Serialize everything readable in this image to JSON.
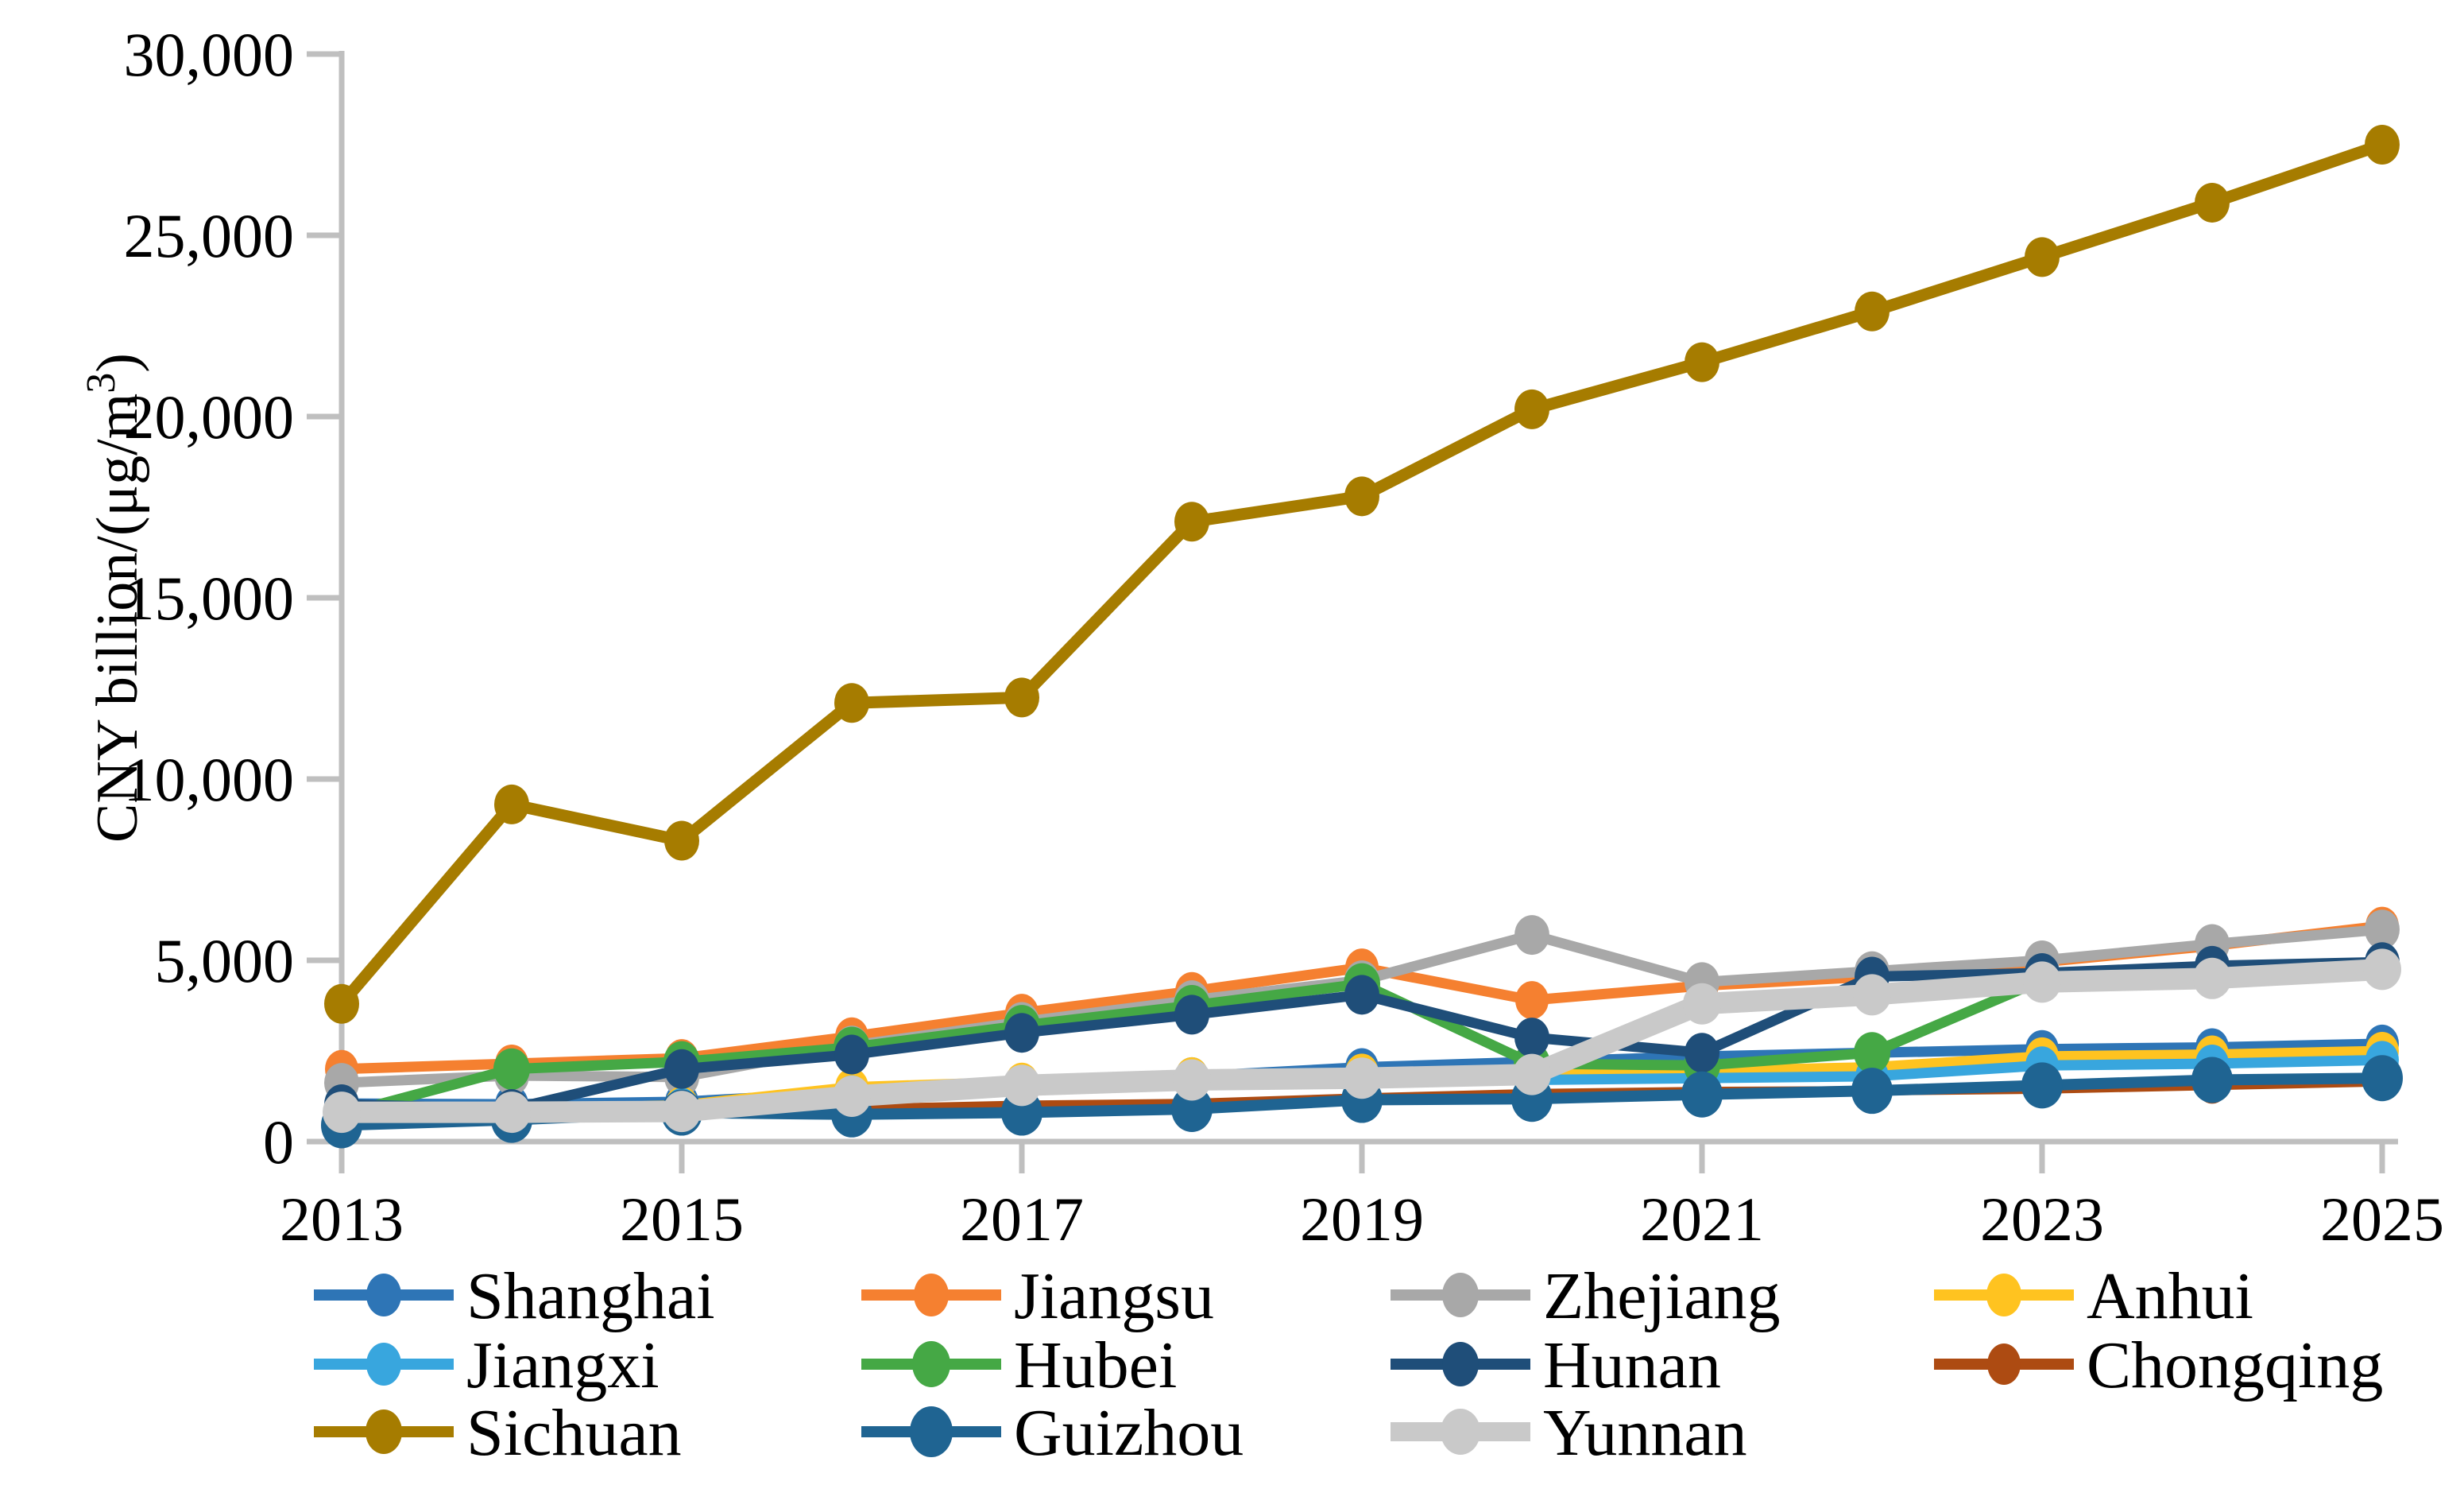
{
  "chart_data": {
    "type": "line",
    "title": "",
    "ylabel_prefix": "CNY billion/(μg/m",
    "ylabel_sup": "3",
    "ylabel_suffix": ")",
    "x": [
      2013,
      2014,
      2015,
      2016,
      2017,
      2018,
      2019,
      2020,
      2021,
      2022,
      2023,
      2024,
      2025
    ],
    "x_tick_labels": [
      "2013",
      "2015",
      "2017",
      "2019",
      "2021",
      "2023",
      "2025"
    ],
    "y_axis": {
      "min": 0,
      "max": 30000,
      "step": 5000,
      "tick_labels": [
        "0",
        "5,000",
        "10,000",
        "15,000",
        "20,000",
        "25,000",
        "30,000"
      ]
    },
    "grid": false,
    "legend_position": "bottom",
    "series": [
      {
        "name": "Shanghai",
        "color": "#2E75B6",
        "line_width": 13,
        "marker_rx": 21,
        "marker_ry": 24,
        "values": [
          1050,
          1030,
          1100,
          1350,
          1600,
          1800,
          2050,
          2200,
          2350,
          2450,
          2550,
          2600,
          2700
        ]
      },
      {
        "name": "Jiangsu",
        "color": "#F58030",
        "line_width": 13,
        "marker_rx": 21,
        "marker_ry": 24,
        "values": [
          2000,
          2150,
          2300,
          2900,
          3550,
          4150,
          4800,
          3900,
          4300,
          4550,
          4950,
          5400,
          5950
        ]
      },
      {
        "name": "Zhejiang",
        "color": "#A8A8A8",
        "line_width": 13,
        "marker_rx": 22,
        "marker_ry": 25,
        "values": [
          1620,
          1820,
          1780,
          2650,
          3300,
          3900,
          4450,
          5700,
          4400,
          4700,
          5000,
          5450,
          5850
        ]
      },
      {
        "name": "Anhui",
        "color": "#FFC320",
        "line_width": 13,
        "marker_rx": 21,
        "marker_ry": 24,
        "values": [
          850,
          900,
          1000,
          1500,
          1650,
          1800,
          1900,
          1900,
          1950,
          2050,
          2350,
          2400,
          2500
        ]
      },
      {
        "name": "Jiangxi",
        "color": "#38A6DE",
        "line_width": 13,
        "marker_rx": 21,
        "marker_ry": 24,
        "values": [
          800,
          850,
          950,
          1300,
          1450,
          1600,
          1650,
          1700,
          1750,
          1800,
          2100,
          2150,
          2250
        ]
      },
      {
        "name": "Hubei",
        "color": "#45A845",
        "line_width": 13,
        "marker_rx": 23,
        "marker_ry": 26,
        "values": [
          750,
          2000,
          2200,
          2600,
          3200,
          3750,
          4350,
          2150,
          2100,
          2450,
          4450,
          4650,
          4800
        ]
      },
      {
        "name": "Hunan",
        "color": "#1F4E79",
        "line_width": 13,
        "marker_rx": 22,
        "marker_ry": 25,
        "values": [
          1030,
          900,
          2000,
          2400,
          3000,
          3500,
          4050,
          2870,
          2450,
          4550,
          4650,
          4850,
          4950
        ]
      },
      {
        "name": "Chongqing",
        "color": "#AD4B12",
        "line_width": 12,
        "marker_rx": 20,
        "marker_ry": 23,
        "values": [
          700,
          720,
          800,
          900,
          1000,
          1050,
          1200,
          1320,
          1380,
          1400,
          1450,
          1550,
          1650
        ]
      },
      {
        "name": "Sichuan",
        "color": "#A67C00",
        "line_width": 15,
        "marker_rx": 22,
        "marker_ry": 25,
        "values": [
          3800,
          9300,
          8300,
          12100,
          12250,
          17100,
          17800,
          20200,
          21500,
          22900,
          24400,
          25900,
          27500
        ]
      },
      {
        "name": "Guizhou",
        "color": "#1F6492",
        "line_width": 14,
        "marker_rx": 26,
        "marker_ry": 29,
        "values": [
          450,
          600,
          800,
          750,
          800,
          900,
          1150,
          1180,
          1300,
          1400,
          1550,
          1700,
          1750
        ]
      },
      {
        "name": "Yunnan",
        "color": "#C9C9C9",
        "line_width": 27,
        "marker_rx": 24,
        "marker_ry": 26,
        "values": [
          810,
          810,
          830,
          1250,
          1550,
          1700,
          1750,
          1850,
          3800,
          4050,
          4400,
          4500,
          4750
        ]
      }
    ]
  },
  "colors": {
    "axis": "#BFBFBF",
    "text": "#000000",
    "background": "#FFFFFF"
  }
}
